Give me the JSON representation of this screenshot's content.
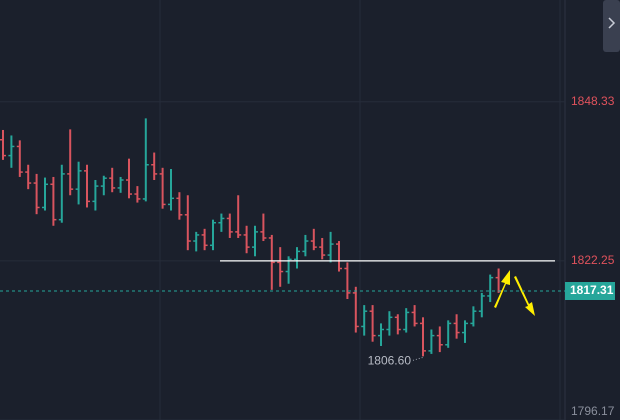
{
  "chart_data": {
    "type": "ohlc",
    "ylim": [
      1796.17,
      1865
    ],
    "yticks": [
      1796.17,
      1822.25,
      1848.33
    ],
    "ytick_colors": [
      "#8a8f9c",
      "#e0525c",
      "#e0525c"
    ],
    "grid": true,
    "up_color": "#26a69a",
    "down_color": "#d9545e",
    "hline": 1822.25,
    "hline_color": "#ffffff",
    "last_price": 1817.31,
    "last_price_color": "#26a69a",
    "low_label": "1806.60",
    "bars": [
      [
        1842.1,
        1843.7,
        1838.8,
        1839.5
      ],
      [
        1839.5,
        1842.8,
        1837.5,
        1841.0
      ],
      [
        1841.0,
        1842.0,
        1836.0,
        1836.8
      ],
      [
        1836.8,
        1838.0,
        1834.0,
        1835.0
      ],
      [
        1835.0,
        1836.5,
        1829.9,
        1831.0
      ],
      [
        1831.0,
        1835.9,
        1830.5,
        1834.8
      ],
      [
        1834.8,
        1836.0,
        1828.0,
        1829.0
      ],
      [
        1829.0,
        1838.0,
        1828.5,
        1836.5
      ],
      [
        1836.5,
        1843.8,
        1833.0,
        1834.0
      ],
      [
        1834.0,
        1838.5,
        1831.5,
        1837.0
      ],
      [
        1837.0,
        1838.0,
        1831.0,
        1832.0
      ],
      [
        1832.0,
        1835.5,
        1830.5,
        1834.5
      ],
      [
        1834.5,
        1836.2,
        1833.0,
        1835.8
      ],
      [
        1835.8,
        1837.5,
        1833.5,
        1834.2
      ],
      [
        1834.2,
        1836.0,
        1833.4,
        1835.5
      ],
      [
        1835.5,
        1839.0,
        1832.5,
        1833.2
      ],
      [
        1833.2,
        1834.5,
        1831.8,
        1832.4
      ],
      [
        1832.4,
        1845.6,
        1832.0,
        1838.0
      ],
      [
        1838.0,
        1840.0,
        1835.5,
        1836.5
      ],
      [
        1836.5,
        1837.5,
        1830.8,
        1831.5
      ],
      [
        1831.5,
        1837.3,
        1830.5,
        1832.5
      ],
      [
        1832.5,
        1833.5,
        1829.0,
        1829.8
      ],
      [
        1829.8,
        1833.0,
        1824.0,
        1825.5
      ],
      [
        1825.5,
        1827.0,
        1823.8,
        1826.5
      ],
      [
        1826.5,
        1827.5,
        1824.0,
        1824.8
      ],
      [
        1824.8,
        1829.0,
        1824.0,
        1828.5
      ],
      [
        1828.5,
        1830.0,
        1827.0,
        1829.2
      ],
      [
        1829.2,
        1830.0,
        1826.0,
        1827.0
      ],
      [
        1827.0,
        1833.0,
        1826.0,
        1826.5
      ],
      [
        1826.5,
        1828.0,
        1823.5,
        1824.5
      ],
      [
        1824.5,
        1828.0,
        1823.0,
        1827.0
      ],
      [
        1827.0,
        1830.0,
        1825.5,
        1826.0
      ],
      [
        1826.0,
        1826.5,
        1817.5,
        1822.0
      ],
      [
        1822.0,
        1824.5,
        1818.0,
        1820.5
      ],
      [
        1820.5,
        1823.0,
        1818.5,
        1822.5
      ],
      [
        1822.5,
        1824.5,
        1821.0,
        1823.8
      ],
      [
        1823.8,
        1826.5,
        1823.0,
        1825.5
      ],
      [
        1825.5,
        1827.5,
        1824.0,
        1824.5
      ],
      [
        1824.5,
        1826.0,
        1822.5,
        1823.2
      ],
      [
        1823.2,
        1827.0,
        1822.0,
        1825.0
      ],
      [
        1825.0,
        1825.5,
        1820.5,
        1821.0
      ],
      [
        1821.0,
        1822.0,
        1816.0,
        1817.0
      ],
      [
        1817.0,
        1818.0,
        1810.5,
        1811.5
      ],
      [
        1811.5,
        1815.0,
        1810.0,
        1814.0
      ],
      [
        1814.0,
        1815.0,
        1809.0,
        1810.0
      ],
      [
        1810.0,
        1812.0,
        1808.3,
        1811.0
      ],
      [
        1811.0,
        1814.0,
        1810.0,
        1813.0
      ],
      [
        1813.0,
        1813.5,
        1810.2,
        1811.0
      ],
      [
        1811.0,
        1814.5,
        1810.5,
        1813.8
      ],
      [
        1813.8,
        1815.0,
        1811.5,
        1812.0
      ],
      [
        1812.0,
        1813.0,
        1806.6,
        1807.5
      ],
      [
        1807.5,
        1811.0,
        1807.0,
        1810.0
      ],
      [
        1810.0,
        1811.5,
        1807.3,
        1808.5
      ],
      [
        1808.5,
        1812.5,
        1808.0,
        1812.0
      ],
      [
        1812.0,
        1813.5,
        1809.5,
        1810.5
      ],
      [
        1810.5,
        1812.5,
        1808.8,
        1812.0
      ],
      [
        1812.0,
        1814.8,
        1811.5,
        1814.0
      ],
      [
        1814.0,
        1817.0,
        1813.0,
        1816.5
      ],
      [
        1816.5,
        1820.0,
        1815.5,
        1819.5
      ],
      [
        1819.5,
        1821.0,
        1817.0,
        1817.31
      ]
    ]
  }
}
